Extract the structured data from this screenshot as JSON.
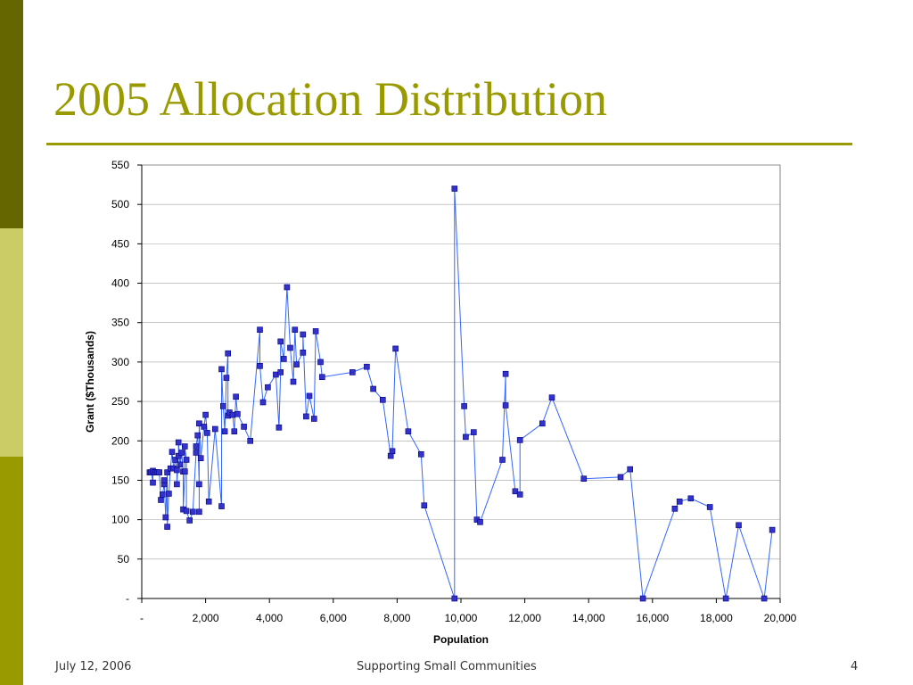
{
  "slide": {
    "title": "2005 Allocation Distribution",
    "footer_date": "July 12, 2006",
    "footer_center": "Supporting Small Communities",
    "page_number": "4",
    "sidebar_colors": [
      "#666600",
      "#CCCC66",
      "#999900"
    ],
    "accent_color": "#999900"
  },
  "chart_data": {
    "type": "line",
    "title": "",
    "xlabel": "Population",
    "ylabel": "Grant ($Thousands)",
    "xlim": [
      0,
      20000
    ],
    "ylim": [
      0,
      550
    ],
    "x_ticks": [
      0,
      2000,
      4000,
      6000,
      8000,
      10000,
      12000,
      14000,
      16000,
      18000,
      20000
    ],
    "x_tick_labels": [
      "-",
      "2,000",
      "4,000",
      "6,000",
      "8,000",
      "10,000",
      "12,000",
      "14,000",
      "16,000",
      "18,000",
      "20,000"
    ],
    "y_ticks": [
      0,
      50,
      100,
      150,
      200,
      250,
      300,
      350,
      400,
      450,
      500,
      550
    ],
    "y_tick_labels": [
      "-",
      "50",
      "100",
      "150",
      "200",
      "250",
      "300",
      "350",
      "400",
      "450",
      "500",
      "550"
    ],
    "grid": "horizontal",
    "legend": "none",
    "series": [
      {
        "color": "#3366FF",
        "marker_fill": "#3333CC",
        "points": [
          [
            250,
            160
          ],
          [
            300,
            160
          ],
          [
            350,
            147
          ],
          [
            350,
            162
          ],
          [
            400,
            160
          ],
          [
            450,
            160
          ],
          [
            500,
            160
          ],
          [
            550,
            160
          ],
          [
            600,
            125
          ],
          [
            650,
            132
          ],
          [
            700,
            145
          ],
          [
            700,
            150
          ],
          [
            750,
            103
          ],
          [
            800,
            160
          ],
          [
            800,
            91
          ],
          [
            850,
            133
          ],
          [
            900,
            165
          ],
          [
            950,
            186
          ],
          [
            1000,
            165
          ],
          [
            1050,
            176
          ],
          [
            1100,
            163
          ],
          [
            1100,
            145
          ],
          [
            1150,
            181
          ],
          [
            1150,
            198
          ],
          [
            1200,
            170
          ],
          [
            1250,
            185
          ],
          [
            1300,
            161
          ],
          [
            1300,
            113
          ],
          [
            1350,
            161
          ],
          [
            1350,
            193
          ],
          [
            1400,
            176
          ],
          [
            1400,
            111
          ],
          [
            1500,
            99
          ],
          [
            1600,
            110
          ],
          [
            1700,
            185
          ],
          [
            1700,
            193
          ],
          [
            1750,
            207
          ],
          [
            1800,
            145
          ],
          [
            1800,
            110
          ],
          [
            1800,
            222
          ],
          [
            1850,
            178
          ],
          [
            1950,
            218
          ],
          [
            2000,
            233
          ],
          [
            2050,
            210
          ],
          [
            2100,
            123
          ],
          [
            2300,
            215
          ],
          [
            2500,
            117
          ],
          [
            2500,
            291
          ],
          [
            2550,
            244
          ],
          [
            2600,
            212
          ],
          [
            2650,
            280
          ],
          [
            2700,
            311
          ],
          [
            2700,
            232
          ],
          [
            2750,
            236
          ],
          [
            2850,
            233
          ],
          [
            2900,
            212
          ],
          [
            2950,
            256
          ],
          [
            3000,
            234
          ],
          [
            3200,
            218
          ],
          [
            3400,
            200
          ],
          [
            3700,
            341
          ],
          [
            3700,
            295
          ],
          [
            3800,
            249
          ],
          [
            3950,
            268
          ],
          [
            4200,
            284
          ],
          [
            4300,
            217
          ],
          [
            4350,
            287
          ],
          [
            4350,
            326
          ],
          [
            4450,
            304
          ],
          [
            4550,
            395
          ],
          [
            4650,
            318
          ],
          [
            4750,
            275
          ],
          [
            4800,
            341
          ],
          [
            4850,
            297
          ],
          [
            5050,
            312
          ],
          [
            5050,
            335
          ],
          [
            5150,
            231
          ],
          [
            5250,
            257
          ],
          [
            5400,
            228
          ],
          [
            5450,
            339
          ],
          [
            5600,
            300
          ],
          [
            5650,
            281
          ],
          [
            6600,
            287
          ],
          [
            7050,
            294
          ],
          [
            7250,
            266
          ],
          [
            7550,
            252
          ],
          [
            7800,
            181
          ],
          [
            7850,
            187
          ],
          [
            7950,
            317
          ],
          [
            8350,
            212
          ],
          [
            8750,
            183
          ],
          [
            8850,
            118
          ],
          [
            9800,
            0
          ],
          [
            9800,
            520
          ],
          [
            10100,
            244
          ],
          [
            10150,
            205
          ],
          [
            10400,
            211
          ],
          [
            10500,
            100
          ],
          [
            10600,
            97
          ],
          [
            11300,
            176
          ],
          [
            11400,
            285
          ],
          [
            11400,
            245
          ],
          [
            11700,
            136
          ],
          [
            11850,
            132
          ],
          [
            11850,
            201
          ],
          [
            12550,
            222
          ],
          [
            12850,
            255
          ],
          [
            13850,
            152
          ],
          [
            15000,
            154
          ],
          [
            15300,
            164
          ],
          [
            15700,
            0
          ],
          [
            16700,
            114
          ],
          [
            16850,
            123
          ],
          [
            17200,
            127
          ],
          [
            17800,
            116
          ],
          [
            18300,
            0
          ],
          [
            18700,
            93
          ],
          [
            19500,
            0
          ],
          [
            19750,
            87
          ]
        ]
      }
    ]
  }
}
